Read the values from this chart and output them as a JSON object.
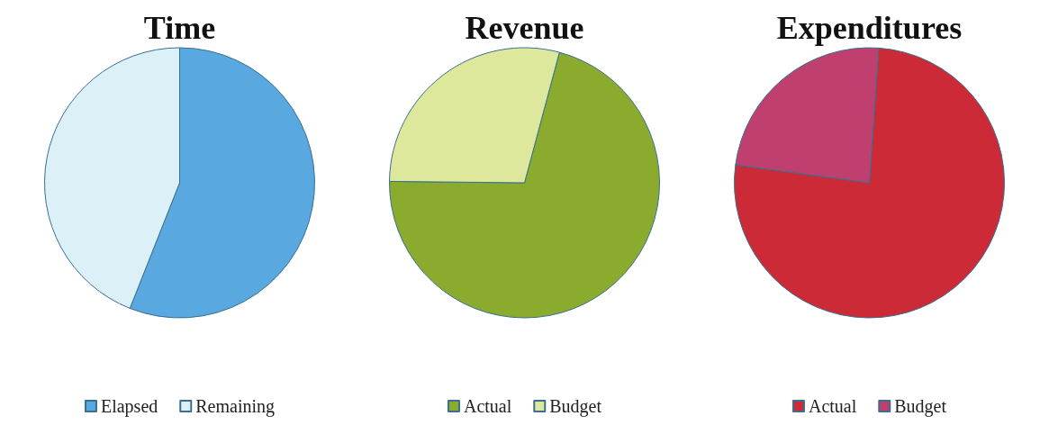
{
  "chart_data": [
    {
      "type": "pie",
      "title": "Time",
      "categories": [
        "Elapsed",
        "Remaining"
      ],
      "values": [
        56,
        44
      ],
      "colors": [
        "#5aa8e0",
        "#dcf0f8"
      ],
      "legend": "bottom"
    },
    {
      "type": "pie",
      "title": "Revenue",
      "categories": [
        "Actual",
        "Budget"
      ],
      "values": [
        71,
        29
      ],
      "colors": [
        "#8bab2e",
        "#dde89c"
      ],
      "legend": "bottom"
    },
    {
      "type": "pie",
      "title": "Expenditures",
      "categories": [
        "Actual",
        "Budget"
      ],
      "values": [
        76,
        24
      ],
      "colors": [
        "#cc2a36",
        "#bf3f6e"
      ],
      "legend": "bottom"
    }
  ]
}
